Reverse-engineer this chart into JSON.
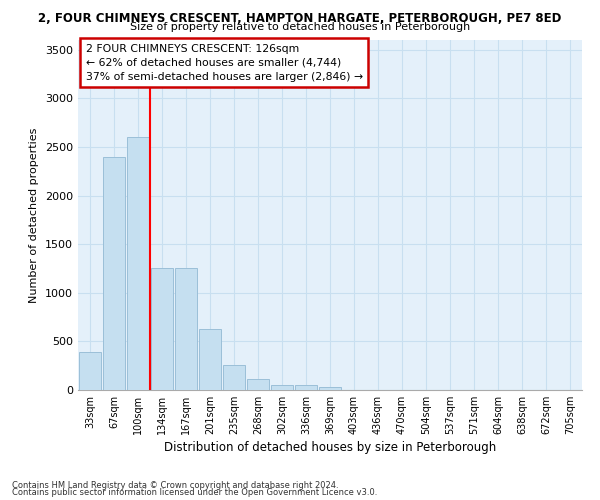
{
  "title": "2, FOUR CHIMNEYS CRESCENT, HAMPTON HARGATE, PETERBOROUGH, PE7 8ED",
  "subtitle": "Size of property relative to detached houses in Peterborough",
  "xlabel": "Distribution of detached houses by size in Peterborough",
  "ylabel": "Number of detached properties",
  "categories": [
    "33sqm",
    "67sqm",
    "100sqm",
    "134sqm",
    "167sqm",
    "201sqm",
    "235sqm",
    "268sqm",
    "302sqm",
    "336sqm",
    "369sqm",
    "403sqm",
    "436sqm",
    "470sqm",
    "504sqm",
    "537sqm",
    "571sqm",
    "604sqm",
    "638sqm",
    "672sqm",
    "705sqm"
  ],
  "bar_values": [
    390,
    2400,
    2600,
    1250,
    1250,
    630,
    260,
    110,
    55,
    50,
    30,
    0,
    0,
    0,
    0,
    0,
    0,
    0,
    0,
    0,
    0
  ],
  "bar_color": "#c5dff0",
  "bar_edge_color": "#9bbfd8",
  "red_line_x": 2.5,
  "annotation_text": "2 FOUR CHIMNEYS CRESCENT: 126sqm\n← 62% of detached houses are smaller (4,744)\n37% of semi-detached houses are larger (2,846) →",
  "annotation_box_color": "#ffffff",
  "annotation_box_edge": "#cc0000",
  "ylim": [
    0,
    3600
  ],
  "yticks": [
    0,
    500,
    1000,
    1500,
    2000,
    2500,
    3000,
    3500
  ],
  "grid_color": "#c8dff0",
  "bg_color": "#e4f0fa",
  "footer1": "Contains HM Land Registry data © Crown copyright and database right 2024.",
  "footer2": "Contains public sector information licensed under the Open Government Licence v3.0."
}
